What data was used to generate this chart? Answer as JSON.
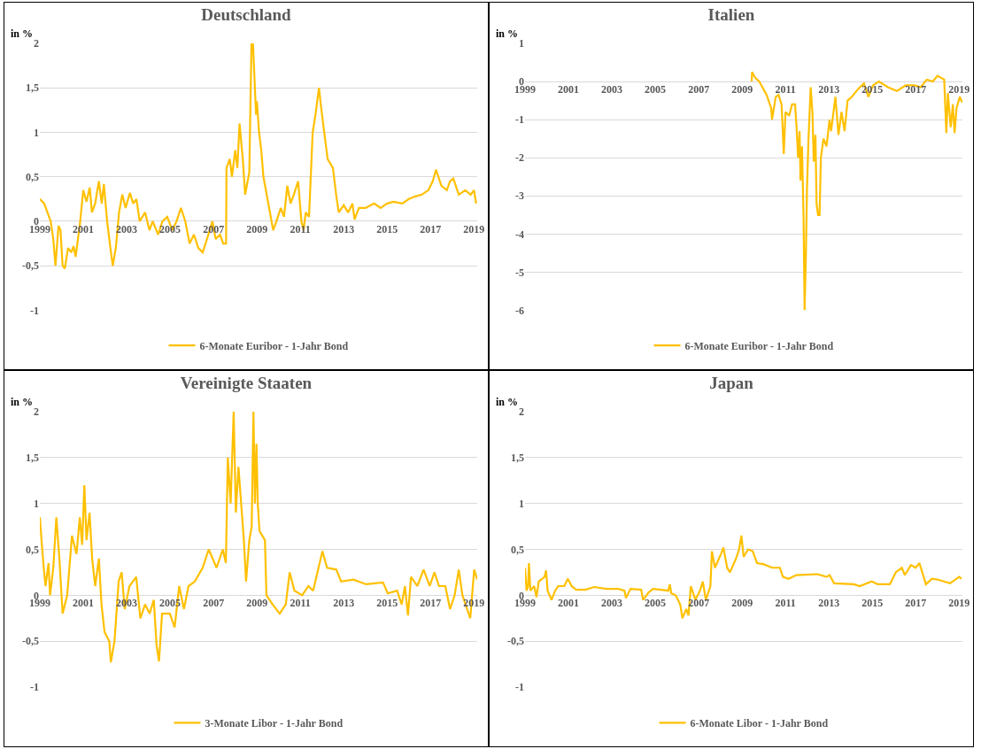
{
  "chart_data": [
    {
      "type": "line",
      "title": "Deutschland",
      "ylabel": "in %",
      "legend": "bottom",
      "grid": "y",
      "marker": "none",
      "line_style": "solid",
      "xlim": [
        1999,
        2019.15
      ],
      "xticks": [
        1999,
        2001,
        2003,
        2005,
        2007,
        2009,
        2011,
        2013,
        2015,
        2017,
        2019
      ],
      "ylim": [
        -1,
        2
      ],
      "yticks": [
        -1,
        {
          "value": -0.5,
          "label": "-0,5"
        },
        0,
        {
          "value": 0.5,
          "label": "0,5"
        },
        1,
        {
          "value": 1.5,
          "label": "1,5"
        },
        2
      ],
      "series": [
        {
          "name": "6-Monate Euribor - 1-Jahr Bond",
          "color": "#ffc000",
          "x": [
            1999.0,
            1999.2,
            1999.35,
            1999.5,
            1999.62,
            1999.72,
            1999.86,
            1999.95,
            2000.05,
            2000.15,
            2000.3,
            2000.45,
            2000.55,
            2000.65,
            2000.86,
            2001.0,
            2001.15,
            2001.3,
            2001.4,
            2001.55,
            2001.72,
            2001.85,
            2001.95,
            2002.1,
            2002.25,
            2002.36,
            2002.5,
            2002.65,
            2002.8,
            2002.95,
            2003.15,
            2003.3,
            2003.45,
            2003.6,
            2003.85,
            2004.05,
            2004.2,
            2004.45,
            2004.65,
            2004.87,
            2005.1,
            2005.3,
            2005.5,
            2005.7,
            2005.9,
            2006.1,
            2006.3,
            2006.5,
            2006.7,
            2006.95,
            2007.1,
            2007.3,
            2007.45,
            2007.58,
            2007.6,
            2007.75,
            2007.85,
            2008.0,
            2008.1,
            2008.2,
            2008.35,
            2008.46,
            2008.65,
            2008.75,
            2008.82,
            2008.96,
            2009.0,
            2009.1,
            2009.2,
            2009.3,
            2009.45,
            2009.75,
            2009.9,
            2010.1,
            2010.25,
            2010.4,
            2010.55,
            2010.7,
            2010.9,
            2011.05,
            2011.15,
            2011.25,
            2011.4,
            2011.57,
            2011.7,
            2011.86,
            2011.95,
            2012.1,
            2012.26,
            2012.5,
            2012.65,
            2012.77,
            2013.0,
            2013.2,
            2013.4,
            2013.5,
            2013.7,
            2014.0,
            2014.4,
            2014.7,
            2015.0,
            2015.3,
            2015.7,
            2016.0,
            2016.3,
            2016.6,
            2016.9,
            2017.1,
            2017.25,
            2017.5,
            2017.75,
            2017.9,
            2018.05,
            2018.3,
            2018.6,
            2018.85,
            2019.0,
            2019.1
          ],
          "values": [
            0.25,
            0.2,
            0.1,
            0.0,
            -0.2,
            -0.5,
            -0.05,
            -0.1,
            -0.5,
            -0.53,
            -0.3,
            -0.35,
            -0.28,
            -0.4,
            0.0,
            0.35,
            0.22,
            0.38,
            0.1,
            0.2,
            0.45,
            0.2,
            0.42,
            0.0,
            -0.3,
            -0.5,
            -0.3,
            0.1,
            0.3,
            0.15,
            0.32,
            0.2,
            0.25,
            0.0,
            0.1,
            -0.1,
            0.0,
            -0.15,
            0.0,
            0.05,
            -0.1,
            0.0,
            0.15,
            0.0,
            -0.25,
            -0.15,
            -0.3,
            -0.35,
            -0.2,
            0.0,
            -0.2,
            -0.15,
            -0.25,
            -0.25,
            0.6,
            0.7,
            0.5,
            0.8,
            0.6,
            1.1,
            0.7,
            0.3,
            0.55,
            2.0,
            2.0,
            1.2,
            1.35,
            1.0,
            0.8,
            0.5,
            0.3,
            -0.1,
            0.0,
            0.15,
            0.05,
            0.4,
            0.2,
            0.3,
            0.45,
            0.0,
            -0.1,
            0.1,
            0.05,
            1.0,
            1.2,
            1.5,
            1.3,
            1.0,
            0.7,
            0.6,
            0.3,
            0.1,
            0.18,
            0.1,
            0.2,
            0.02,
            0.15,
            0.15,
            0.2,
            0.15,
            0.2,
            0.22,
            0.2,
            0.25,
            0.28,
            0.3,
            0.35,
            0.45,
            0.58,
            0.4,
            0.35,
            0.45,
            0.48,
            0.3,
            0.35,
            0.3,
            0.35,
            0.2
          ]
        }
      ]
    },
    {
      "type": "line",
      "title": "Italien",
      "ylabel": "in %",
      "legend": "bottom",
      "grid": "y",
      "marker": "none",
      "line_style": "solid",
      "xlim": [
        1999,
        2019.15
      ],
      "xticks": [
        1999,
        2001,
        2003,
        2005,
        2007,
        2009,
        2011,
        2013,
        2015,
        2017,
        2019
      ],
      "ylim": [
        -6,
        1
      ],
      "yticks": [
        -6,
        -5,
        -4,
        -3,
        -2,
        -1,
        0,
        1
      ],
      "series": [
        {
          "name": "6-Monate Euribor - 1-Jahr Bond",
          "color": "#ffc000",
          "x": [
            2009.44,
            2009.46,
            2009.6,
            2009.79,
            2010.13,
            2010.34,
            2010.38,
            2010.55,
            2010.68,
            2010.82,
            2010.92,
            2011.0,
            2011.17,
            2011.3,
            2011.44,
            2011.51,
            2011.58,
            2011.65,
            2011.69,
            2011.76,
            2011.83,
            2011.88,
            2011.94,
            2011.99,
            2012.06,
            2012.16,
            2012.24,
            2012.3,
            2012.38,
            2012.43,
            2012.5,
            2012.57,
            2012.63,
            2012.75,
            2012.89,
            2013.03,
            2013.1,
            2013.3,
            2013.44,
            2013.58,
            2013.72,
            2013.86,
            2014.06,
            2014.34,
            2014.61,
            2014.82,
            2015.03,
            2015.3,
            2015.72,
            2016.13,
            2016.54,
            2016.96,
            2017.23,
            2017.51,
            2017.79,
            2018.0,
            2018.31,
            2018.41,
            2018.48,
            2018.61,
            2018.71,
            2018.79,
            2018.88,
            2019.03,
            2019.14
          ],
          "values": [
            0.0,
            0.25,
            0.1,
            0.0,
            -0.35,
            -0.7,
            -1.0,
            -0.4,
            -0.35,
            -0.6,
            -1.9,
            -0.8,
            -0.9,
            -0.6,
            -0.6,
            -1.2,
            -2.0,
            -1.3,
            -2.6,
            -1.7,
            -3.5,
            -6.0,
            -4.5,
            -2.8,
            -1.5,
            -0.15,
            -0.8,
            -2.1,
            -1.4,
            -3.2,
            -3.5,
            -3.5,
            -2.0,
            -1.5,
            -1.7,
            -1.0,
            -1.3,
            -0.4,
            -1.4,
            -0.8,
            -1.3,
            -0.5,
            -0.4,
            -0.2,
            -0.05,
            -0.4,
            -0.1,
            0.0,
            -0.15,
            -0.25,
            -0.1,
            -0.1,
            -0.15,
            0.05,
            0.0,
            0.15,
            0.05,
            -1.35,
            -0.3,
            -1.2,
            -0.6,
            -1.35,
            -0.7,
            -0.4,
            -0.55
          ]
        }
      ]
    },
    {
      "type": "line",
      "title": "Vereinigte Staaten",
      "ylabel": "in %",
      "legend": "bottom",
      "grid": "y",
      "marker": "none",
      "line_style": "solid",
      "xlim": [
        1999,
        2019.15
      ],
      "xticks": [
        1999,
        2001,
        2003,
        2005,
        2007,
        2009,
        2011,
        2013,
        2015,
        2017,
        2019
      ],
      "ylim": [
        -1,
        2
      ],
      "yticks": [
        -1,
        {
          "value": -0.5,
          "label": "-0,5"
        },
        0,
        {
          "value": 0.5,
          "label": "0,5"
        },
        1,
        {
          "value": 1.5,
          "label": "1,5"
        },
        2
      ],
      "series": [
        {
          "name": "3-Monate Libor - 1-Jahr Bond",
          "color": "#ffc000",
          "x": [
            1999.0,
            1999.11,
            1999.18,
            1999.26,
            1999.4,
            1999.47,
            1999.62,
            1999.76,
            1999.9,
            2000.05,
            2000.26,
            2000.48,
            2000.69,
            2000.84,
            2000.95,
            2001.05,
            2001.15,
            2001.29,
            2001.41,
            2001.55,
            2001.72,
            2001.84,
            2001.98,
            2002.2,
            2002.27,
            2002.44,
            2002.63,
            2002.77,
            2002.91,
            2003.13,
            2003.44,
            2003.63,
            2003.85,
            2004.06,
            2004.25,
            2004.38,
            2004.49,
            2004.63,
            2004.99,
            2005.21,
            2005.42,
            2005.64,
            2005.85,
            2006.14,
            2006.5,
            2006.78,
            2007.14,
            2007.43,
            2007.57,
            2007.66,
            2007.79,
            2007.93,
            2008.03,
            2008.15,
            2008.29,
            2008.4,
            2008.5,
            2008.65,
            2008.76,
            2008.84,
            2008.91,
            2008.98,
            2009.04,
            2009.12,
            2009.37,
            2009.44,
            2009.72,
            2010.05,
            2010.33,
            2010.51,
            2010.73,
            2011.09,
            2011.37,
            2011.59,
            2012.02,
            2012.23,
            2012.66,
            2012.88,
            2013.45,
            2014.03,
            2014.81,
            2015.03,
            2015.46,
            2015.67,
            2015.82,
            2015.96,
            2016.1,
            2016.39,
            2016.68,
            2016.96,
            2017.18,
            2017.39,
            2017.68,
            2017.9,
            2018.11,
            2018.3,
            2018.47,
            2018.61,
            2018.83,
            2019.01,
            2019.15
          ],
          "values": [
            0.85,
            0.5,
            0.3,
            0.1,
            0.35,
            0.0,
            0.3,
            0.85,
            0.4,
            -0.2,
            0.0,
            0.65,
            0.45,
            0.85,
            0.55,
            1.2,
            0.6,
            0.9,
            0.4,
            0.1,
            0.4,
            -0.1,
            -0.4,
            -0.5,
            -0.73,
            -0.5,
            0.15,
            0.25,
            -0.15,
            0.1,
            0.2,
            -0.25,
            -0.1,
            -0.2,
            -0.05,
            -0.55,
            -0.72,
            -0.2,
            -0.2,
            -0.35,
            0.1,
            -0.15,
            0.1,
            0.15,
            0.3,
            0.5,
            0.3,
            0.5,
            0.35,
            1.5,
            1.0,
            2.0,
            0.9,
            1.4,
            0.95,
            0.6,
            0.15,
            0.6,
            0.75,
            2.0,
            1.0,
            1.65,
            1.0,
            0.7,
            0.6,
            0.0,
            -0.1,
            -0.2,
            -0.1,
            0.25,
            0.05,
            0.0,
            0.1,
            0.05,
            0.48,
            0.3,
            0.28,
            0.15,
            0.17,
            0.12,
            0.14,
            0.02,
            0.05,
            -0.1,
            0.1,
            -0.22,
            0.2,
            0.1,
            0.28,
            0.1,
            0.25,
            0.1,
            0.1,
            -0.15,
            0.0,
            0.28,
            0.0,
            -0.1,
            -0.25,
            0.28,
            0.17
          ]
        }
      ]
    },
    {
      "type": "line",
      "title": "Japan",
      "ylabel": "in %",
      "legend": "bottom",
      "grid": "y",
      "marker": "none",
      "line_style": "solid",
      "xlim": [
        1999,
        2019.15
      ],
      "xticks": [
        1999,
        2001,
        2003,
        2005,
        2007,
        2009,
        2011,
        2013,
        2015,
        2017,
        2019
      ],
      "ylim": [
        -1,
        2
      ],
      "yticks": [
        -1,
        {
          "value": -0.5,
          "label": "-0,5"
        },
        0,
        {
          "value": 0.5,
          "label": "0,5"
        },
        1,
        {
          "value": 1.5,
          "label": "1,5"
        },
        2
      ],
      "series": [
        {
          "name": "6-Monate Libor - 1-Jahr Bond",
          "color": "#ffc000",
          "x": [
            1999.0,
            1999.07,
            1999.14,
            1999.18,
            1999.25,
            1999.42,
            1999.53,
            1999.63,
            1999.9,
            1999.97,
            2000.04,
            2000.22,
            2000.39,
            2000.53,
            2000.81,
            2000.97,
            2001.15,
            2001.36,
            2001.78,
            2002.19,
            2002.75,
            2003.3,
            2003.58,
            2003.65,
            2003.86,
            2004.35,
            2004.44,
            2004.69,
            2004.9,
            2005.25,
            2005.6,
            2005.67,
            2005.74,
            2005.94,
            2006.15,
            2006.25,
            2006.43,
            2006.53,
            2006.64,
            2006.85,
            2007.06,
            2007.19,
            2007.33,
            2007.54,
            2007.61,
            2007.75,
            2008.03,
            2008.14,
            2008.31,
            2008.44,
            2008.72,
            2008.86,
            2008.97,
            2009.07,
            2009.28,
            2009.49,
            2009.69,
            2009.97,
            2010.39,
            2010.74,
            2010.88,
            2011.15,
            2011.5,
            2012.47,
            2012.89,
            2013.03,
            2013.24,
            2014.14,
            2014.42,
            2014.97,
            2015.25,
            2015.81,
            2016.08,
            2016.36,
            2016.5,
            2016.78,
            2016.99,
            2017.17,
            2017.47,
            2017.75,
            2018.03,
            2018.58,
            2019.0,
            2019.11
          ],
          "values": [
            0.3,
            0.05,
            0.1,
            0.35,
            0.05,
            0.1,
            -0.02,
            0.15,
            0.2,
            0.27,
            0.05,
            -0.05,
            0.05,
            0.1,
            0.1,
            0.18,
            0.1,
            0.06,
            0.06,
            0.09,
            0.07,
            0.07,
            0.05,
            -0.03,
            0.07,
            0.06,
            -0.05,
            0.03,
            0.07,
            0.06,
            0.05,
            0.12,
            0.02,
            0.0,
            -0.1,
            -0.25,
            -0.15,
            -0.22,
            0.1,
            -0.05,
            0.05,
            0.15,
            -0.05,
            0.1,
            0.48,
            0.3,
            0.45,
            0.52,
            0.3,
            0.25,
            0.4,
            0.5,
            0.65,
            0.42,
            0.5,
            0.48,
            0.35,
            0.34,
            0.3,
            0.3,
            0.2,
            0.18,
            0.22,
            0.23,
            0.2,
            0.22,
            0.13,
            0.12,
            0.1,
            0.15,
            0.12,
            0.12,
            0.25,
            0.3,
            0.22,
            0.33,
            0.3,
            0.35,
            0.12,
            0.18,
            0.17,
            0.13,
            0.2,
            0.18
          ]
        }
      ]
    }
  ]
}
